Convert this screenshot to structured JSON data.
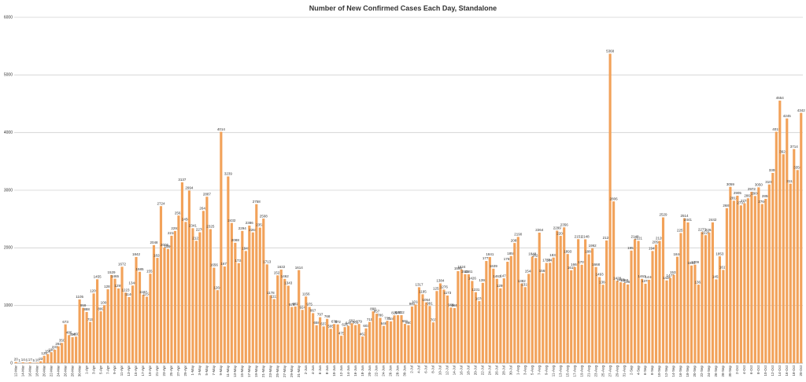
{
  "chart_data": {
    "type": "bar",
    "title": "Number of New Confirmed Cases Each Day, Standalone",
    "categories": [
      "12-Mar",
      null,
      "14-Mar",
      null,
      "16-Mar",
      null,
      "18-Mar",
      null,
      "20-Mar",
      null,
      "22-Mar",
      null,
      "24-Mar",
      null,
      "26-Mar",
      null,
      "28-Mar",
      null,
      "30-Mar",
      null,
      "1-Apr",
      null,
      "3-Apr",
      null,
      "5-Apr",
      null,
      "7-Apr",
      null,
      "9-Apr",
      null,
      "11-Apr",
      null,
      "13-Apr",
      null,
      "15-Apr",
      null,
      "17-Apr",
      null,
      "19-Apr",
      null,
      "21-Apr",
      null,
      "23-Apr",
      null,
      "25-Apr",
      null,
      "27-Apr",
      null,
      "29-Apr",
      null,
      "1-May",
      null,
      "3-May",
      null,
      "5-May",
      null,
      "7-May",
      null,
      "9-May",
      null,
      "11-May",
      null,
      "13-May",
      null,
      "15-May",
      null,
      "17-May",
      null,
      "19-May",
      null,
      "21-May",
      null,
      "23-May",
      null,
      "25-May",
      null,
      "27-May",
      null,
      "29-May",
      null,
      "31-May",
      null,
      "2-Jun",
      null,
      "4-Jun",
      null,
      "6-Jun",
      null,
      "8-Jun",
      null,
      "10-Jun",
      null,
      "12-Jun",
      null,
      "14-Jun",
      null,
      "16-Jun",
      null,
      "18-Jun",
      null,
      "20-Jun",
      null,
      "22-Jun",
      null,
      "24-Jun",
      null,
      "26-Jun",
      null,
      "28-Jun",
      null,
      "30-Jun",
      null,
      "2-Jul",
      null,
      "4-Jul",
      null,
      "6-Jul",
      null,
      "8-Jul",
      null,
      "10-Jul",
      null,
      "12-Jul",
      null,
      "14-Jul",
      null,
      "16-Jul",
      null,
      "18-Jul",
      null,
      "20-Jul",
      null,
      "22-Jul",
      null,
      "24-Jul",
      null,
      "26-Jul",
      null,
      "28-Jul",
      null,
      "30-Jul",
      null,
      "1-Aug",
      null,
      "3-Aug",
      null,
      "5-Aug",
      null,
      "7-Aug",
      null,
      "9-Aug",
      null,
      "11-Aug",
      null,
      "13-Aug",
      null,
      "15-Aug",
      null,
      "17-Aug",
      null,
      "19-Aug",
      null,
      "21-Aug",
      null,
      "23-Aug",
      null,
      "25-Aug",
      null,
      "27-Aug",
      null,
      "29-Aug",
      null,
      "31-Aug",
      null,
      "2-Sep",
      null,
      "4-Sep",
      null,
      "6-Sep",
      null,
      "8-Sep",
      null,
      "10-Sep",
      null,
      "12-Sep",
      null,
      "14-Sep",
      null,
      "16-Sep",
      null,
      "18-Sep",
      null,
      "20-Sep",
      null,
      "22-Sep",
      null,
      "24-Sep",
      null,
      "26-Sep",
      null,
      "28-Sep",
      null,
      "30-Sep",
      null,
      "2-Oct",
      null,
      "4-Oct",
      null,
      "6-Oct",
      null,
      "8-Oct",
      null,
      "10-Oct",
      null,
      "12-Oct",
      null,
      "14-Oct",
      null,
      "16-Oct",
      null,
      "18-Oct",
      null,
      "20-Oct"
    ],
    "values": [
      20,
      1,
      14,
      6,
      17,
      5,
      10,
      33,
      128,
      158,
      190,
      233,
      292,
      350,
      673,
      486,
      450,
      460,
      1105,
      959,
      888,
      715,
      1209,
      1455,
      899,
      1006,
      1281,
      1529,
      1465,
      1295,
      1672,
      1223,
      1146,
      1346,
      1842,
      1585,
      1187,
      1153,
      1551,
      2048,
      1826,
      2724,
      2006,
      1980,
      2210,
      2293,
      2561,
      3137,
      2450,
      2994,
      2341,
      2122,
      2270,
      2641,
      2887,
      2325,
      1656,
      1266,
      4014,
      1677,
      3239,
      2432,
      2088,
      1734,
      2294,
      1945,
      2386,
      2268,
      2758,
      2352,
      2508,
      1713,
      1178,
      1111,
      1523,
      1622,
      1462,
      1343,
      974,
      982,
      1614,
      924,
      1156,
      975,
      867,
      658,
      797,
      637,
      768,
      595,
      678,
      672,
      475,
      625,
      649,
      692,
      661,
      679,
      462,
      603,
      715,
      898,
      857,
      786,
      646,
      735,
      724,
      829,
      832,
      832,
      681,
      660,
      981,
      1018,
      1317,
      1195,
      1054,
      991,
      707,
      1251,
      1384,
      1276,
      1173,
      965,
      955,
      1596,
      1624,
      1543,
      1541,
      1426,
      1231,
      1076,
      1393,
      1772,
      1841,
      1639,
      1463,
      1298,
      1471,
      1759,
      1858,
      2085,
      2190,
      1382,
      1319,
      1548,
      1848,
      1824,
      2264,
      1560,
      1738,
      1741,
      1832,
      2299,
      2208,
      2356,
      1893,
      1611,
      1668,
      2151,
      1707,
      2148,
      1888,
      1992,
      1668,
      1493,
      1360,
      2128,
      5368,
      2806,
      1428,
      1403,
      1393,
      1365,
      1953,
      2148,
      2121,
      1463,
      1378,
      1446,
      1945,
      2056,
      2120,
      2529,
      1435,
      1477,
      1531,
      1846,
      2257,
      2514,
      2441,
      1694,
      1709,
      1362,
      2273,
      2220,
      2264,
      2442,
      1453,
      1853,
      1617,
      2688,
      3059,
      2818,
      2905,
      2737,
      2774,
      2860,
      2972,
      2900,
      3050,
      2760,
      2850,
      3100,
      3300,
      4015,
      4554,
      3624,
      4245,
      3113,
      3714,
      3350,
      4342
    ],
    "color": "#f2a25a",
    "ylim": [
      0,
      6000
    ],
    "yticks": [
      0,
      1000,
      2000,
      3000,
      4000,
      5000,
      6000
    ],
    "grid": true
  }
}
